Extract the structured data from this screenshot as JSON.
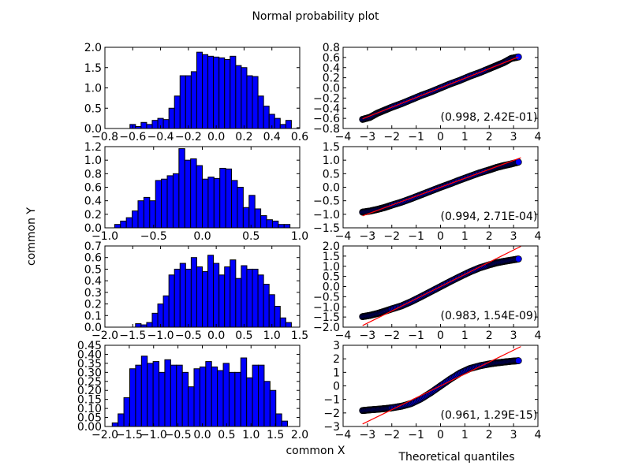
{
  "figure": {
    "title": "Normal probability plot",
    "common_x_label": "common X",
    "common_y_label": "common Y",
    "qq_x_label": "Theoretical quantiles"
  },
  "colors": {
    "bar_fill": "#0000ff",
    "point_fill": "#0000ff",
    "fit_line": "#ff0000",
    "axes": "#000000"
  },
  "chart_data": [
    {
      "type": "bar",
      "row": 0,
      "xlim": [
        -0.8,
        0.6
      ],
      "ylim": [
        0,
        2.0
      ],
      "xticks": [
        -0.8,
        -0.6,
        -0.4,
        -0.2,
        0.0,
        0.2,
        0.4,
        0.6
      ],
      "xtick_labels": [
        "−0.8",
        "−0.6",
        "−0.4",
        "−0.2",
        "0.0",
        "0.2",
        "0.4",
        "0.6"
      ],
      "yticks": [
        0,
        0.5,
        1.0,
        1.5,
        2.0
      ],
      "ytick_labels": [
        "0.0",
        "0.5",
        "1.0",
        "1.5",
        "2.0"
      ],
      "bin_edges": [
        -0.62,
        -0.58,
        -0.54,
        -0.5,
        -0.46,
        -0.42,
        -0.38,
        -0.34,
        -0.3,
        -0.26,
        -0.22,
        -0.18,
        -0.14,
        -0.1,
        -0.06,
        -0.02,
        0.02,
        0.06,
        0.1,
        0.14,
        0.18,
        0.22,
        0.26,
        0.3,
        0.34,
        0.38,
        0.42,
        0.46,
        0.5,
        0.54,
        0.58,
        0.62
      ],
      "values": [
        0.1,
        0.05,
        0.15,
        0.1,
        0.2,
        0.25,
        0.22,
        0.5,
        0.8,
        1.3,
        1.3,
        1.4,
        1.88,
        1.82,
        1.78,
        1.76,
        1.74,
        1.7,
        1.78,
        1.55,
        1.5,
        1.3,
        1.28,
        0.8,
        0.55,
        0.35,
        0.25,
        0.1,
        0.2,
        0.0,
        0.02
      ]
    },
    {
      "type": "scatter",
      "row": 0,
      "xlim": [
        -4,
        4
      ],
      "ylim": [
        -0.8,
        0.8
      ],
      "xticks": [
        -4,
        -3,
        -2,
        -1,
        0,
        1,
        2,
        3,
        4
      ],
      "xtick_labels": [
        "−4",
        "−3",
        "−2",
        "−1",
        "0",
        "1",
        "2",
        "3",
        "4"
      ],
      "yticks": [
        -0.8,
        -0.6,
        -0.4,
        -0.2,
        0.0,
        0.2,
        0.4,
        0.6,
        0.8
      ],
      "ytick_labels": [
        "−0.8",
        "−0.6",
        "−0.4",
        "−0.2",
        "0.0",
        "0.2",
        "0.4",
        "0.6",
        "0.8"
      ],
      "fit": {
        "slope": 0.19,
        "intercept": 0.0
      },
      "x_range": [
        -3.2,
        3.2
      ],
      "points": [
        [
          -3.2,
          -0.62
        ],
        [
          -2.9,
          -0.58
        ],
        [
          -2.6,
          -0.5
        ],
        [
          -2.3,
          -0.44
        ],
        [
          -2.0,
          -0.38
        ],
        [
          -1.6,
          -0.31
        ],
        [
          -1.2,
          -0.23
        ],
        [
          -0.8,
          -0.15
        ],
        [
          -0.4,
          -0.08
        ],
        [
          0.0,
          0.0
        ],
        [
          0.4,
          0.08
        ],
        [
          0.8,
          0.15
        ],
        [
          1.2,
          0.23
        ],
        [
          1.6,
          0.3
        ],
        [
          2.0,
          0.38
        ],
        [
          2.3,
          0.44
        ],
        [
          2.6,
          0.5
        ],
        [
          2.9,
          0.58
        ],
        [
          3.2,
          0.61
        ]
      ],
      "annotation": "(0.998, 2.42E-01)"
    },
    {
      "type": "bar",
      "row": 1,
      "xlim": [
        -1.0,
        1.0
      ],
      "ylim": [
        0,
        1.2
      ],
      "xticks": [
        -1.0,
        -0.5,
        0.0,
        0.5,
        1.0
      ],
      "xtick_labels": [
        "−1.0",
        "−0.5",
        "0.0",
        "0.5",
        "1.0"
      ],
      "yticks": [
        0,
        0.2,
        0.4,
        0.6,
        0.8,
        1.0,
        1.2
      ],
      "ytick_labels": [
        "0.0",
        "0.2",
        "0.4",
        "0.6",
        "0.8",
        "1.0",
        "1.2"
      ],
      "bin_edges": [
        -0.9,
        -0.84,
        -0.78,
        -0.72,
        -0.66,
        -0.6,
        -0.54,
        -0.48,
        -0.42,
        -0.36,
        -0.3,
        -0.24,
        -0.18,
        -0.12,
        -0.06,
        0.0,
        0.06,
        0.12,
        0.18,
        0.24,
        0.3,
        0.36,
        0.42,
        0.48,
        0.54,
        0.6,
        0.66,
        0.72,
        0.78,
        0.84,
        0.9
      ],
      "values": [
        0.05,
        0.1,
        0.15,
        0.25,
        0.4,
        0.45,
        0.4,
        0.7,
        0.72,
        0.77,
        0.8,
        1.17,
        1.0,
        1.02,
        0.92,
        0.72,
        0.75,
        0.73,
        0.88,
        0.87,
        0.7,
        0.6,
        0.3,
        0.48,
        0.28,
        0.18,
        0.12,
        0.1,
        0.05,
        0.05
      ]
    },
    {
      "type": "scatter",
      "row": 1,
      "xlim": [
        -4,
        4
      ],
      "ylim": [
        -1.5,
        1.5
      ],
      "xticks": [
        -4,
        -3,
        -2,
        -1,
        0,
        1,
        2,
        3,
        4
      ],
      "xtick_labels": [
        "−4",
        "−3",
        "−2",
        "−1",
        "0",
        "1",
        "2",
        "3",
        "4"
      ],
      "yticks": [
        -1.5,
        -1.0,
        -0.5,
        0.0,
        0.5,
        1.0,
        1.5
      ],
      "ytick_labels": [
        "−1.5",
        "−1.0",
        "−0.5",
        "0.0",
        "0.5",
        "1.0",
        "1.5"
      ],
      "fit": {
        "slope": 0.33,
        "intercept": 0.0
      },
      "x_range": [
        -3.2,
        3.3
      ],
      "points": [
        [
          -3.2,
          -0.92
        ],
        [
          -2.9,
          -0.88
        ],
        [
          -2.6,
          -0.82
        ],
        [
          -2.3,
          -0.75
        ],
        [
          -2.0,
          -0.66
        ],
        [
          -1.6,
          -0.55
        ],
        [
          -1.2,
          -0.42
        ],
        [
          -0.8,
          -0.28
        ],
        [
          -0.4,
          -0.14
        ],
        [
          0.0,
          0.0
        ],
        [
          0.4,
          0.13
        ],
        [
          0.8,
          0.27
        ],
        [
          1.2,
          0.4
        ],
        [
          1.6,
          0.53
        ],
        [
          2.0,
          0.64
        ],
        [
          2.3,
          0.73
        ],
        [
          2.6,
          0.8
        ],
        [
          2.9,
          0.86
        ],
        [
          3.2,
          0.93
        ]
      ],
      "annotation": "(0.994, 2.71E-04)"
    },
    {
      "type": "bar",
      "row": 2,
      "xlim": [
        -2.0,
        1.5
      ],
      "ylim": [
        0,
        0.7
      ],
      "xticks": [
        -2.0,
        -1.5,
        -1.0,
        -0.5,
        0.0,
        0.5,
        1.0,
        1.5
      ],
      "xtick_labels": [
        "−2.0",
        "−1.5",
        "−1.0",
        "−0.5",
        "0.0",
        "0.5",
        "1.0",
        "1.5"
      ],
      "yticks": [
        0,
        0.1,
        0.2,
        0.3,
        0.4,
        0.5,
        0.6,
        0.7
      ],
      "ytick_labels": [
        "0.0",
        "0.1",
        "0.2",
        "0.3",
        "0.4",
        "0.5",
        "0.6",
        "0.7"
      ],
      "bin_edges": [
        -1.45,
        -1.35,
        -1.25,
        -1.15,
        -1.05,
        -0.95,
        -0.85,
        -0.75,
        -0.65,
        -0.55,
        -0.45,
        -0.35,
        -0.25,
        -0.15,
        -0.05,
        0.05,
        0.15,
        0.25,
        0.35,
        0.45,
        0.55,
        0.65,
        0.75,
        0.85,
        0.95,
        1.05,
        1.15,
        1.25,
        1.35
      ],
      "values": [
        0.03,
        0.02,
        0.04,
        0.12,
        0.2,
        0.27,
        0.45,
        0.5,
        0.55,
        0.5,
        0.6,
        0.52,
        0.48,
        0.62,
        0.55,
        0.45,
        0.52,
        0.58,
        0.42,
        0.53,
        0.5,
        0.5,
        0.45,
        0.37,
        0.28,
        0.18,
        0.08,
        0.04
      ]
    },
    {
      "type": "scatter",
      "row": 2,
      "xlim": [
        -4,
        4
      ],
      "ylim": [
        -2.0,
        2.0
      ],
      "xticks": [
        -4,
        -3,
        -2,
        -1,
        0,
        1,
        2,
        3,
        4
      ],
      "xtick_labels": [
        "−4",
        "−3",
        "−2",
        "−1",
        "0",
        "1",
        "2",
        "3",
        "4"
      ],
      "yticks": [
        -2.0,
        -1.5,
        -1.0,
        -0.5,
        0.0,
        0.5,
        1.0,
        1.5,
        2.0
      ],
      "ytick_labels": [
        "−2.0",
        "−1.5",
        "−1.0",
        "−0.5",
        "0.0",
        "0.5",
        "1.0",
        "1.5",
        "2.0"
      ],
      "fit": {
        "slope": 0.6,
        "intercept": 0.0
      },
      "x_range": [
        -3.2,
        3.3
      ],
      "points": [
        [
          -3.2,
          -1.48
        ],
        [
          -2.9,
          -1.42
        ],
        [
          -2.6,
          -1.33
        ],
        [
          -2.3,
          -1.22
        ],
        [
          -2.0,
          -1.1
        ],
        [
          -1.6,
          -0.95
        ],
        [
          -1.2,
          -0.74
        ],
        [
          -0.8,
          -0.5
        ],
        [
          -0.4,
          -0.25
        ],
        [
          0.0,
          0.0
        ],
        [
          0.4,
          0.25
        ],
        [
          0.8,
          0.49
        ],
        [
          1.2,
          0.72
        ],
        [
          1.6,
          0.92
        ],
        [
          2.0,
          1.07
        ],
        [
          2.3,
          1.17
        ],
        [
          2.6,
          1.24
        ],
        [
          2.9,
          1.3
        ],
        [
          3.2,
          1.36
        ]
      ],
      "annotation": "(0.983, 1.54E-09)"
    },
    {
      "type": "bar",
      "row": 3,
      "xlim": [
        -2.0,
        2.0
      ],
      "ylim": [
        0,
        0.45
      ],
      "xticks": [
        -2.0,
        -1.5,
        -1.0,
        -0.5,
        0.0,
        0.5,
        1.0,
        1.5,
        2.0
      ],
      "xtick_labels": [
        "−2.0",
        "−1.5",
        "−1.0",
        "−0.5",
        "0.0",
        "0.5",
        "1.0",
        "1.5",
        "2.0"
      ],
      "yticks": [
        0,
        0.05,
        0.1,
        0.15,
        0.2,
        0.25,
        0.3,
        0.35,
        0.4,
        0.45
      ],
      "ytick_labels": [
        "0.00",
        "0.05",
        "0.10",
        "0.15",
        "0.20",
        "0.25",
        "0.30",
        "0.35",
        "0.40",
        "0.45"
      ],
      "bin_edges": [
        -1.85,
        -1.73,
        -1.61,
        -1.49,
        -1.37,
        -1.25,
        -1.13,
        -1.01,
        -0.89,
        -0.77,
        -0.65,
        -0.53,
        -0.41,
        -0.29,
        -0.17,
        -0.05,
        0.07,
        0.19,
        0.31,
        0.43,
        0.55,
        0.67,
        0.79,
        0.91,
        1.03,
        1.15,
        1.27,
        1.39,
        1.51,
        1.63,
        1.75
      ],
      "values": [
        0.02,
        0.07,
        0.16,
        0.32,
        0.34,
        0.39,
        0.35,
        0.36,
        0.3,
        0.37,
        0.34,
        0.34,
        0.3,
        0.22,
        0.32,
        0.33,
        0.36,
        0.33,
        0.31,
        0.35,
        0.3,
        0.3,
        0.38,
        0.27,
        0.34,
        0.34,
        0.25,
        0.2,
        0.07,
        0.03
      ]
    },
    {
      "type": "scatter",
      "row": 3,
      "xlim": [
        -4,
        4
      ],
      "ylim": [
        -3,
        3
      ],
      "xticks": [
        -4,
        -3,
        -2,
        -1,
        0,
        1,
        2,
        3,
        4
      ],
      "xtick_labels": [
        "−4",
        "−3",
        "−2",
        "−1",
        "0",
        "1",
        "2",
        "3",
        "4"
      ],
      "yticks": [
        -3,
        -2,
        -1,
        0,
        1,
        2,
        3
      ],
      "ytick_labels": [
        "−3",
        "−2",
        "−1",
        "0",
        "1",
        "2",
        "3"
      ],
      "fit": {
        "slope": 0.88,
        "intercept": 0.0
      },
      "x_range": [
        -3.2,
        3.3
      ],
      "points": [
        [
          -3.2,
          -1.82
        ],
        [
          -2.9,
          -1.77
        ],
        [
          -2.6,
          -1.73
        ],
        [
          -2.3,
          -1.68
        ],
        [
          -2.0,
          -1.62
        ],
        [
          -1.6,
          -1.5
        ],
        [
          -1.2,
          -1.3
        ],
        [
          -0.8,
          -0.95
        ],
        [
          -0.4,
          -0.5
        ],
        [
          0.0,
          0.0
        ],
        [
          0.4,
          0.5
        ],
        [
          0.8,
          0.95
        ],
        [
          1.2,
          1.28
        ],
        [
          1.6,
          1.48
        ],
        [
          2.0,
          1.62
        ],
        [
          2.3,
          1.7
        ],
        [
          2.6,
          1.76
        ],
        [
          2.9,
          1.82
        ],
        [
          3.2,
          1.86
        ]
      ],
      "annotation": "(0.961, 1.29E-15)"
    }
  ]
}
